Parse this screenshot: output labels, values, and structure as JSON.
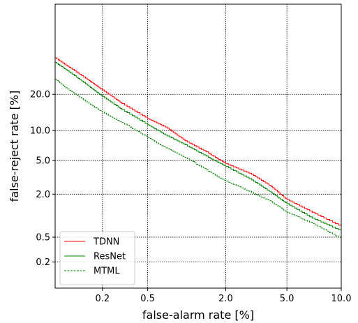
{
  "chart_data": {
    "type": "line",
    "title": "",
    "xlabel": "false-alarm rate [%]",
    "ylabel": "false-reject rate [%]",
    "x_scale": "probit",
    "y_scale": "probit",
    "xlim": [
      0.07,
      10.0
    ],
    "ylim": [
      0.07,
      60.0
    ],
    "x_ticks": [
      0.2,
      0.5,
      2.0,
      5.0,
      10.0
    ],
    "x_tick_labels": [
      "0.2",
      "0.5",
      "2.0",
      "5.0",
      "10.0"
    ],
    "y_ticks": [
      0.2,
      0.5,
      2.0,
      5.0,
      10.0,
      20.0
    ],
    "y_tick_labels": [
      "0.2",
      "0.5",
      "2.0",
      "5.0",
      "10.0",
      "20.0"
    ],
    "grid": true,
    "legend_position": "lower-left",
    "series": [
      {
        "name": "TDNN",
        "color": "#ff0000",
        "linestyle": "solid",
        "x": [
          0.07,
          0.1,
          0.15,
          0.2,
          0.3,
          0.5,
          0.7,
          1.0,
          1.5,
          2.0,
          3.0,
          4.0,
          5.0,
          7.0,
          10.0
        ],
        "y": [
          34.5,
          30.0,
          25.0,
          21.5,
          17.0,
          12.8,
          10.8,
          8.0,
          6.0,
          4.6,
          3.5,
          2.5,
          1.7,
          1.15,
          0.72
        ]
      },
      {
        "name": "ResNet",
        "color": "#008000",
        "linestyle": "solid",
        "x": [
          0.07,
          0.1,
          0.15,
          0.2,
          0.3,
          0.5,
          0.7,
          1.0,
          1.5,
          2.0,
          3.0,
          4.0,
          5.0,
          7.0,
          10.0
        ],
        "y": [
          32.5,
          28.0,
          22.8,
          19.3,
          15.2,
          11.3,
          9.1,
          7.3,
          5.4,
          4.3,
          3.0,
          2.1,
          1.5,
          0.95,
          0.62
        ]
      },
      {
        "name": "MTML",
        "color": "#008000",
        "linestyle": "dashed",
        "x": [
          0.07,
          0.1,
          0.15,
          0.2,
          0.3,
          0.5,
          0.7,
          1.0,
          1.5,
          2.0,
          3.0,
          4.0,
          5.0,
          7.0,
          10.0
        ],
        "y": [
          25.5,
          21.0,
          17.0,
          14.5,
          11.8,
          8.6,
          6.8,
          5.4,
          3.8,
          2.9,
          2.1,
          1.6,
          1.15,
          0.8,
          0.47
        ]
      }
    ]
  }
}
